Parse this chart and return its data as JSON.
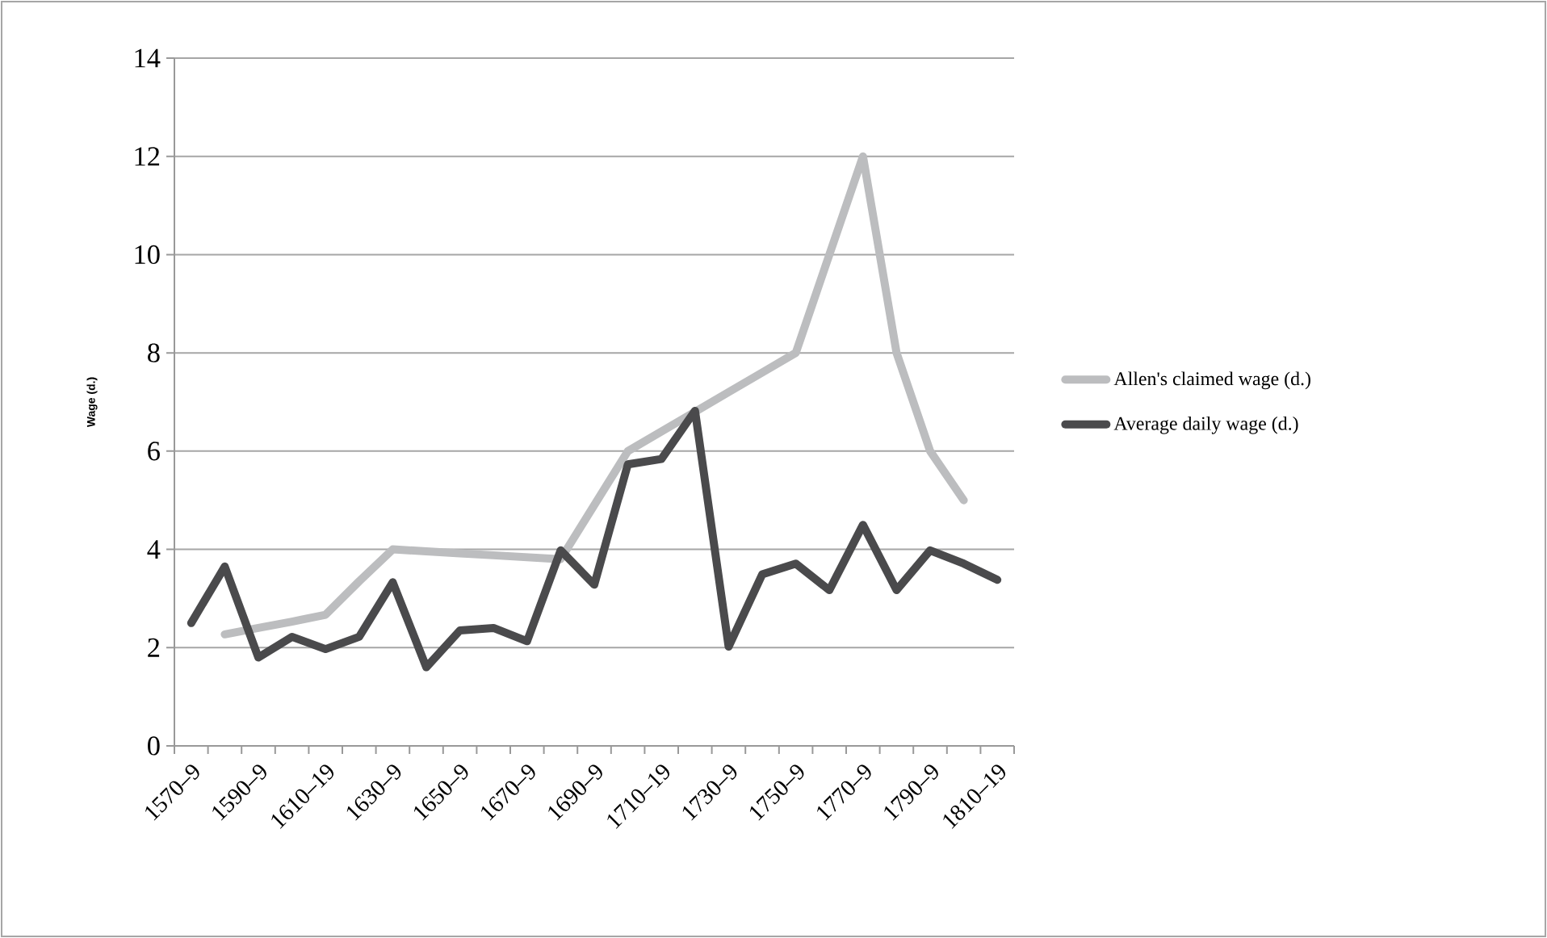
{
  "chart_data": {
    "type": "line",
    "ylabel": "Wage (d.)",
    "categories": [
      "1570–9",
      null,
      "1590–9",
      null,
      "1610–19",
      null,
      "1630–9",
      null,
      "1650–9",
      null,
      "1670–9",
      null,
      "1690–9",
      null,
      "1710–19",
      null,
      "1730–9",
      null,
      "1750–9",
      null,
      "1770–9",
      null,
      "1790–9",
      null,
      "1810–19"
    ],
    "series": [
      {
        "name": "Allen's claimed wage (d.)",
        "color": "#bcbdbf",
        "values": [
          null,
          2.27,
          2.4,
          2.53,
          2.67,
          3.35,
          4.0,
          3.96,
          3.92,
          3.88,
          3.84,
          3.8,
          4.9,
          6.0,
          6.4,
          6.8,
          7.2,
          7.6,
          8.0,
          10.0,
          12.0,
          8.0,
          6.0,
          5.0,
          null
        ]
      },
      {
        "name": "Average daily wage (d.)",
        "color": "#4a4a4c",
        "values": [
          2.5,
          3.65,
          1.8,
          2.22,
          1.97,
          2.22,
          3.33,
          1.6,
          2.35,
          2.4,
          2.13,
          3.98,
          3.28,
          5.73,
          5.84,
          6.82,
          2.02,
          3.49,
          3.71,
          3.17,
          4.5,
          3.17,
          3.98,
          3.71,
          3.38
        ]
      }
    ],
    "ylim": [
      0,
      14
    ],
    "yticks": [
      0,
      2,
      4,
      6,
      8,
      10,
      12,
      14
    ],
    "grid": "y",
    "legend": "right",
    "line_style": "solid",
    "marker": "none"
  }
}
